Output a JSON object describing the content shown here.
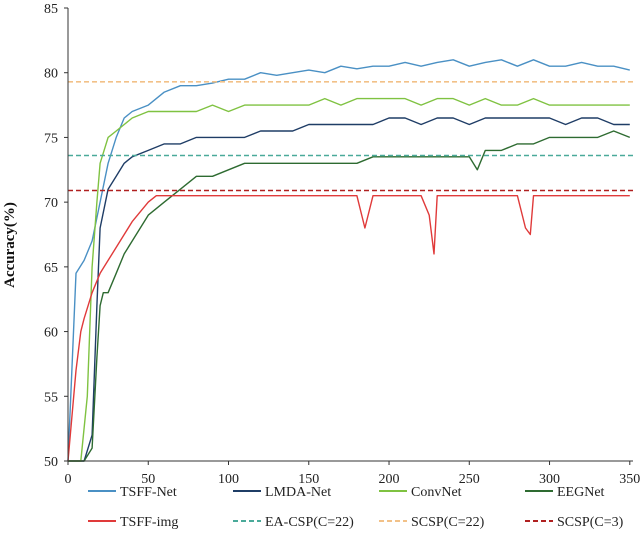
{
  "chart_data": {
    "type": "line",
    "title": "",
    "xlabel": "",
    "ylabel": "Accuracy(%)",
    "xlim": [
      0,
      352
    ],
    "ylim": [
      50,
      85
    ],
    "xticks": [
      0,
      50,
      100,
      150,
      200,
      250,
      300,
      350
    ],
    "yticks": [
      50,
      55,
      60,
      65,
      70,
      75,
      80,
      85
    ],
    "grid": false,
    "legend_position": "bottom",
    "series": [
      {
        "name": "TSFF-Net",
        "color": "#4a90c4",
        "style": "solid",
        "x": [
          0,
          5,
          10,
          15,
          20,
          25,
          30,
          35,
          40,
          50,
          60,
          70,
          80,
          90,
          100,
          110,
          120,
          130,
          140,
          150,
          160,
          170,
          180,
          190,
          200,
          210,
          220,
          230,
          240,
          250,
          260,
          270,
          280,
          290,
          300,
          310,
          320,
          330,
          340,
          350
        ],
        "y": [
          50,
          64.5,
          65.5,
          67,
          70,
          73,
          75,
          76.5,
          77,
          77.5,
          78.5,
          79,
          79,
          79.2,
          79.5,
          79.5,
          80,
          79.8,
          80,
          80.2,
          80,
          80.5,
          80.3,
          80.5,
          80.5,
          80.8,
          80.5,
          80.8,
          81,
          80.5,
          80.8,
          81,
          80.5,
          81,
          80.5,
          80.5,
          80.8,
          80.5,
          80.5,
          80.2
        ]
      },
      {
        "name": "LMDA-Net",
        "color": "#1f3d66",
        "style": "solid",
        "x": [
          0,
          10,
          15,
          18,
          20,
          25,
          30,
          35,
          40,
          50,
          60,
          70,
          80,
          90,
          100,
          110,
          120,
          130,
          140,
          150,
          160,
          170,
          180,
          190,
          200,
          210,
          220,
          230,
          240,
          250,
          260,
          270,
          280,
          290,
          300,
          310,
          320,
          330,
          340,
          350
        ],
        "y": [
          50,
          50,
          52,
          62,
          68,
          71,
          72,
          73,
          73.5,
          74,
          74.5,
          74.5,
          75,
          75,
          75,
          75,
          75.5,
          75.5,
          75.5,
          76,
          76,
          76,
          76,
          76,
          76.5,
          76.5,
          76,
          76.5,
          76.5,
          76,
          76.5,
          76.5,
          76.5,
          76.5,
          76.5,
          76,
          76.5,
          76.5,
          76,
          76
        ]
      },
      {
        "name": "ConvNet",
        "color": "#7fc241",
        "style": "solid",
        "x": [
          0,
          8,
          12,
          15,
          18,
          20,
          25,
          30,
          35,
          40,
          50,
          60,
          70,
          80,
          90,
          100,
          110,
          120,
          130,
          140,
          150,
          160,
          170,
          180,
          190,
          200,
          210,
          220,
          230,
          240,
          250,
          260,
          270,
          280,
          290,
          300,
          310,
          320,
          330,
          340,
          350
        ],
        "y": [
          50,
          50,
          55,
          65,
          70,
          73,
          75,
          75.5,
          76,
          76.5,
          77,
          77,
          77,
          77,
          77.5,
          77,
          77.5,
          77.5,
          77.5,
          77.5,
          77.5,
          78,
          77.5,
          78,
          78,
          78,
          78,
          77.5,
          78,
          78,
          77.5,
          78,
          77.5,
          77.5,
          78,
          77.5,
          77.5,
          77.5,
          77.5,
          77.5,
          77.5
        ]
      },
      {
        "name": "EEGNet",
        "color": "#2e6b31",
        "style": "solid",
        "x": [
          0,
          10,
          15,
          18,
          20,
          22,
          25,
          30,
          35,
          40,
          50,
          60,
          70,
          80,
          90,
          100,
          110,
          120,
          130,
          140,
          150,
          160,
          170,
          180,
          190,
          200,
          210,
          220,
          230,
          240,
          250,
          255,
          260,
          270,
          280,
          290,
          300,
          310,
          320,
          330,
          340,
          350
        ],
        "y": [
          50,
          50,
          51,
          58,
          62,
          63,
          63,
          64.5,
          66,
          67,
          69,
          70,
          71,
          72,
          72,
          72.5,
          73,
          73,
          73,
          73,
          73,
          73,
          73,
          73,
          73.5,
          73.5,
          73.5,
          73.5,
          73.5,
          73.5,
          73.5,
          72.5,
          74,
          74,
          74.5,
          74.5,
          75,
          75,
          75,
          75,
          75.5,
          75
        ]
      },
      {
        "name": "TSFF-img",
        "color": "#e03a3a",
        "style": "solid",
        "x": [
          0,
          5,
          8,
          10,
          15,
          20,
          25,
          30,
          35,
          40,
          50,
          55,
          60,
          70,
          80,
          90,
          100,
          110,
          120,
          130,
          140,
          150,
          160,
          170,
          180,
          185,
          190,
          200,
          210,
          220,
          225,
          228,
          230,
          240,
          250,
          260,
          270,
          280,
          285,
          288,
          290,
          300,
          310,
          320,
          330,
          340,
          350
        ],
        "y": [
          50,
          57,
          60,
          61,
          63,
          64.5,
          65.5,
          66.5,
          67.5,
          68.5,
          70,
          70.5,
          70.5,
          70.5,
          70.5,
          70.5,
          70.5,
          70.5,
          70.5,
          70.5,
          70.5,
          70.5,
          70.5,
          70.5,
          70.5,
          68,
          70.5,
          70.5,
          70.5,
          70.5,
          69,
          66,
          70.5,
          70.5,
          70.5,
          70.5,
          70.5,
          70.5,
          68,
          67.5,
          70.5,
          70.5,
          70.5,
          70.5,
          70.5,
          70.5,
          70.5
        ]
      },
      {
        "name": "EA-CSP(C=22)",
        "color": "#4aaa9a",
        "style": "dashed",
        "x": [
          0,
          352
        ],
        "y": [
          73.6,
          73.6
        ]
      },
      {
        "name": "SCSP(C=22)",
        "color": "#f2c188",
        "style": "dashed",
        "x": [
          0,
          352
        ],
        "y": [
          79.3,
          79.3
        ]
      },
      {
        "name": "SCSP(C=3)",
        "color": "#b02020",
        "style": "dashed",
        "x": [
          0,
          352
        ],
        "y": [
          70.9,
          70.9
        ]
      }
    ]
  }
}
